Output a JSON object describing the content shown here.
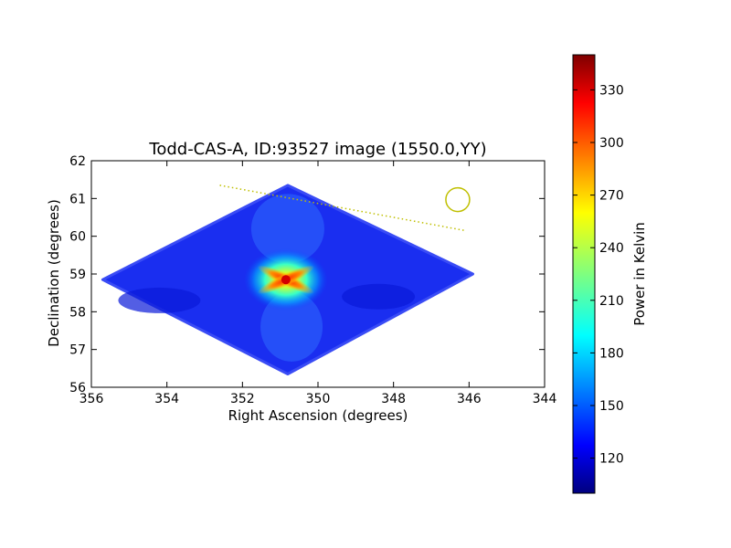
{
  "chart_data": {
    "type": "heatmap",
    "title": "Todd-CAS-A, ID:93527 image (1550.0,YY)",
    "xlabel": "Right Ascension (degrees)",
    "ylabel": "Declination (degrees)",
    "xlim": [
      356,
      344
    ],
    "ylim": [
      56,
      62
    ],
    "x_ticks": [
      "356",
      "354",
      "352",
      "350",
      "348",
      "346",
      "344"
    ],
    "y_ticks": [
      "56",
      "57",
      "58",
      "59",
      "60",
      "61",
      "62"
    ],
    "colorbar": {
      "label": "Power in Kelvin",
      "range": [
        100,
        350
      ],
      "ticks": [
        "120",
        "150",
        "180",
        "210",
        "240",
        "270",
        "300",
        "330"
      ],
      "colormap": "jet"
    },
    "map_footprint_corners": [
      {
        "ra": 350.8,
        "dec": 61.35
      },
      {
        "ra": 345.9,
        "dec": 59.0
      },
      {
        "ra": 350.8,
        "dec": 56.35
      },
      {
        "ra": 355.7,
        "dec": 58.85
      }
    ],
    "source": {
      "ra": 350.85,
      "dec": 58.85,
      "peak_kelvin": 345
    },
    "beam_circle": {
      "ra": 346.3,
      "dec": 60.97,
      "color": "#bfbf00"
    },
    "horizon_line": {
      "color": "#bfbf00",
      "points": [
        {
          "ra": 352.6,
          "dec": 61.35
        },
        {
          "ra": 346.1,
          "dec": 60.15
        }
      ]
    }
  }
}
